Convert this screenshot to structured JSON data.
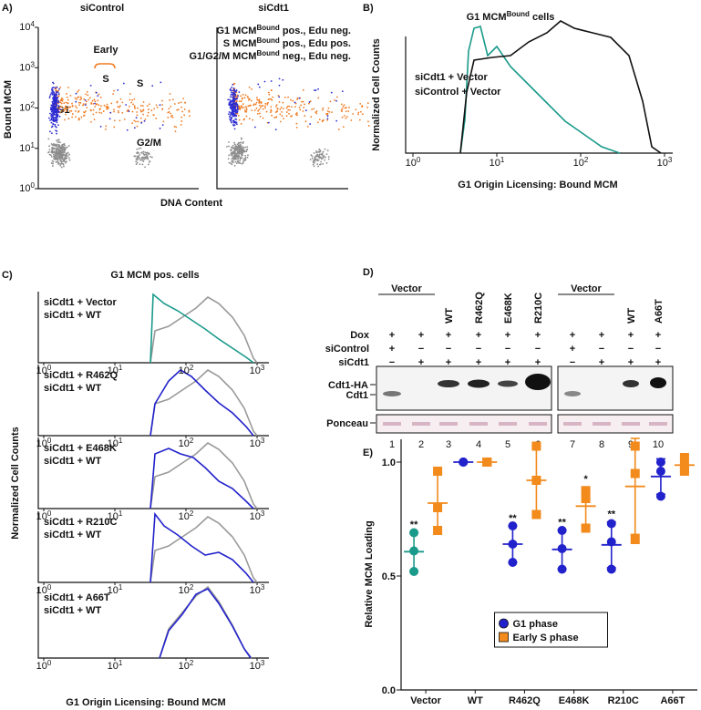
{
  "panel_a": {
    "label": "A)",
    "titles": [
      "siControl",
      "siCdt1"
    ],
    "y_label": "Bound MCM",
    "x_label": "DNA Content",
    "y_ticks": [
      {
        "base": "10",
        "exp": "0"
      },
      {
        "base": "10",
        "exp": "1"
      },
      {
        "base": "10",
        "exp": "2"
      },
      {
        "base": "10",
        "exp": "3"
      },
      {
        "base": "10",
        "exp": "4"
      }
    ],
    "legend": [
      {
        "text": "G1 MCM",
        "sup": "Bound",
        "rest": " pos., Edu neg.",
        "color": "#2b2bd1"
      },
      {
        "text": "S MCM",
        "sup": "Bound",
        "rest": " pos., Edu pos.",
        "color": "#f07a20"
      },
      {
        "text": "G1/G2/M MCM",
        "sup": "Bound",
        "rest": " neg., Edu neg.",
        "color": "#8c8c8c"
      }
    ],
    "early": "Early",
    "early_s": "S",
    "s": "S",
    "g1": "G1",
    "g2m": "G2/M"
  },
  "panel_b": {
    "label": "B)",
    "title": "G1 MCM",
    "title_sup": "Bound",
    "title_rest": " cells",
    "y_label": "Normalized Cell Counts",
    "x_label": "G1 Origin Licensing: Bound MCM",
    "x_ticks": [
      {
        "base": "10",
        "exp": "0"
      },
      {
        "base": "10",
        "exp": "1"
      },
      {
        "base": "10",
        "exp": "2"
      },
      {
        "base": "10",
        "exp": "3"
      }
    ],
    "legend": [
      {
        "text": "siCdt1 + Vector",
        "color": "#1a9a8a"
      },
      {
        "text": "siControl + Vector",
        "color": "#111111"
      }
    ]
  },
  "panel_c": {
    "label": "C)",
    "title": "G1 MCM pos. cells",
    "y_label": "Normalized Cell Counts",
    "x_label": "G1 Origin Licensing: Bound MCM",
    "x_ticks": [
      {
        "base": "10",
        "exp": "0"
      },
      {
        "base": "10",
        "exp": "1"
      },
      {
        "base": "10",
        "exp": "2"
      },
      {
        "base": "10",
        "exp": "3"
      }
    ],
    "subplots": [
      {
        "legend": [
          {
            "text": "siCdt1 + Vector",
            "color": "#1a9a8a"
          },
          {
            "text": "siCdt1 + WT",
            "color": "#9a9a9a"
          }
        ]
      },
      {
        "legend": [
          {
            "text": "siCdt1 + R462Q",
            "color": "#2222cc"
          },
          {
            "text": "siCdt1 + WT",
            "color": "#9a9a9a"
          }
        ]
      },
      {
        "legend": [
          {
            "text": "siCdt1 + E468K",
            "color": "#2222cc"
          },
          {
            "text": "siCdt1 + WT",
            "color": "#9a9a9a"
          }
        ]
      },
      {
        "legend": [
          {
            "text": "siCdt1 + R210C",
            "color": "#2222cc"
          },
          {
            "text": "siCdt1 + WT",
            "color": "#9a9a9a"
          }
        ]
      },
      {
        "legend": [
          {
            "text": "siCdt1 + A66T",
            "color": "#2222cc"
          },
          {
            "text": "siCdt1 + WT",
            "color": "#9a9a9a"
          }
        ]
      }
    ]
  },
  "panel_d": {
    "label": "D)",
    "groups": [
      "Vector",
      "Vector"
    ],
    "lane_names": [
      null,
      null,
      "WT",
      "R462Q",
      "E468K",
      "R210C",
      null,
      null,
      "WT",
      "A66T"
    ],
    "rows": [
      {
        "label": "Dox",
        "signs": [
          "+",
          "+",
          "+",
          "+",
          "+",
          "+",
          "+",
          "+",
          "+",
          "+"
        ]
      },
      {
        "label": "siControl",
        "signs": [
          "+",
          "−",
          "−",
          "−",
          "−",
          "−",
          "+",
          "−",
          "−",
          "−"
        ]
      },
      {
        "label": "siCdt1",
        "signs": [
          "−",
          "+",
          "+",
          "+",
          "+",
          "+",
          "−",
          "+",
          "+",
          "+"
        ]
      }
    ],
    "bands": [
      "Cdt1-HA",
      "Cdt1"
    ],
    "loading": "Ponceau",
    "lanes": [
      1,
      2,
      3,
      4,
      5,
      6,
      7,
      8,
      9,
      10
    ]
  },
  "chart_data": {
    "type": "dot",
    "label": "E)",
    "y_label": "Relative MCM Loading",
    "categories": [
      "Vector",
      "WT",
      "R462Q",
      "E468K",
      "R210C",
      "A66T"
    ],
    "ylim": [
      0,
      1.1
    ],
    "yticks": [
      {
        "value": 0,
        "label": "0.0"
      },
      {
        "value": 0.5,
        "label": "0.5"
      },
      {
        "value": 1,
        "label": "1.0"
      }
    ],
    "legend": "bottom-center",
    "series": [
      {
        "name": "G1 phase",
        "marker": "circle",
        "color": "#2222cc",
        "colors": [
          "#1a9a8a",
          "#2222cc",
          "#2222cc",
          "#2222cc",
          "#2222cc",
          "#2222cc"
        ],
        "values": [
          [
            0.69,
            0.61,
            0.52
          ],
          [
            1.0,
            1.0,
            1.0
          ],
          [
            0.72,
            0.64,
            0.56
          ],
          [
            0.7,
            0.62,
            0.53
          ],
          [
            0.73,
            0.65,
            0.53
          ],
          [
            1.0,
            0.96,
            0.85
          ]
        ],
        "significance": [
          "**",
          null,
          "**",
          "**",
          "**",
          null
        ]
      },
      {
        "name": "Early S phase",
        "marker": "square",
        "color": "#f28a1c",
        "colors": [
          "#f28a1c",
          "#f28a1c",
          "#f28a1c",
          "#f28a1c",
          "#f28a1c",
          "#f28a1c"
        ],
        "values": [
          [
            0.96,
            0.8,
            0.7
          ],
          [
            1.0,
            1.0,
            1.0
          ],
          [
            1.07,
            0.92,
            0.77
          ],
          [
            0.87,
            0.84,
            0.71
          ],
          [
            1.07,
            0.95,
            0.66
          ],
          [
            1.02,
            0.98,
            0.96
          ]
        ],
        "significance": [
          null,
          null,
          null,
          "*",
          null,
          null
        ]
      }
    ]
  }
}
